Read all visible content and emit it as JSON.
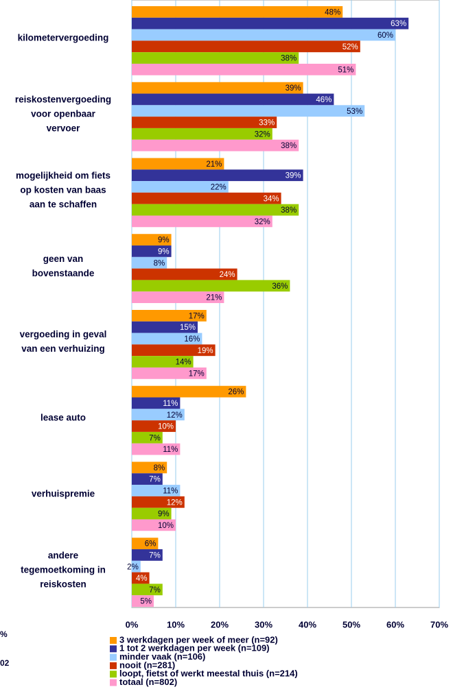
{
  "chart_data": {
    "type": "barh",
    "categories": [
      "kilometervergoeding",
      "reiskostenvergoeding\nvoor openbaar\nvervoer",
      "mogelijkheid om fiets\nop kosten van baas\naan te schaffen",
      "geen van\nbovenstaande",
      "vergoeding in geval\nvan een verhuizing",
      "lease auto",
      "verhuispremie",
      "andere\ntegemoetkoming in\nreiskosten"
    ],
    "series": [
      {
        "name": "3 werkdagen per week of meer (n=92)",
        "color": "#ff9900",
        "label_color": "#000033",
        "values": [
          48,
          39,
          21,
          9,
          17,
          26,
          8,
          6
        ],
        "value_labels": [
          "48%",
          "39%",
          "21%",
          "9%",
          "17%",
          "26%",
          "8%",
          "6%"
        ]
      },
      {
        "name": "1 tot 2 werkdagen per week (n=109)",
        "color": "#333399",
        "label_color": "#ffffff",
        "values": [
          63,
          46,
          39,
          9,
          15,
          11,
          7,
          7
        ],
        "value_labels": [
          "63%",
          "46%",
          "39%",
          "9%",
          "15%",
          "11%",
          "7%",
          "7%"
        ]
      },
      {
        "name": "minder vaak (n=106)",
        "color": "#99ccff",
        "label_color": "#000033",
        "values": [
          60,
          53,
          22,
          8,
          16,
          12,
          11,
          2
        ],
        "value_labels": [
          "60%",
          "53%",
          "22%",
          "8%",
          "16%",
          "12%",
          "11%",
          "2%"
        ]
      },
      {
        "name": "nooit (n=281)",
        "color": "#cc3300",
        "label_color": "#ffffff",
        "values": [
          52,
          33,
          34,
          24,
          19,
          10,
          12,
          4
        ],
        "value_labels": [
          "52%",
          "33%",
          "34%",
          "24%",
          "19%",
          "10%",
          "12%",
          "4%"
        ]
      },
      {
        "name": "loopt, fietst of werkt meestal thuis (n=214)",
        "color": "#99cc00",
        "label_color": "#000033",
        "values": [
          38,
          32,
          38,
          36,
          14,
          7,
          9,
          7
        ],
        "value_labels": [
          "38%",
          "32%",
          "38%",
          "36%",
          "14%",
          "7%",
          "9%",
          "7%"
        ]
      },
      {
        "name": "totaal (n=802)",
        "color": "#ff99cc",
        "label_color": "#000033",
        "values": [
          51,
          38,
          32,
          21,
          17,
          11,
          10,
          5
        ],
        "value_labels": [
          "51%",
          "38%",
          "32%",
          "21%",
          "17%",
          "11%",
          "10%",
          "5%"
        ]
      }
    ],
    "xlim": [
      0,
      70
    ],
    "xticks": [
      {
        "value": 0,
        "label": "0%"
      },
      {
        "value": 10,
        "label": "10%"
      },
      {
        "value": 20,
        "label": "20%"
      },
      {
        "value": 30,
        "label": "30%"
      },
      {
        "value": 40,
        "label": "40%"
      },
      {
        "value": 50,
        "label": "50%"
      },
      {
        "value": 60,
        "label": "60%"
      },
      {
        "value": 70,
        "label": "70%"
      }
    ],
    "grid": true,
    "grid_color": "#99ccee",
    "legend": "bottom",
    "cropped_texts": [
      "%",
      "02"
    ]
  }
}
